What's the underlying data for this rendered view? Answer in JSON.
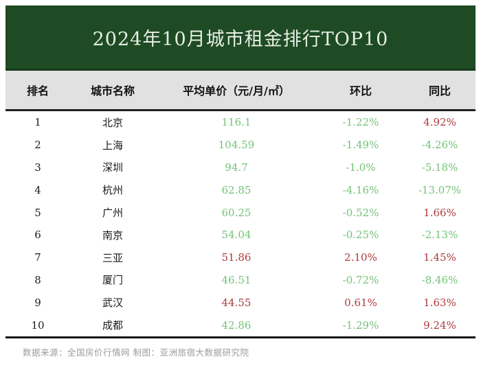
{
  "title": "2024年10月城市租金排行TOP10",
  "table": {
    "columns": [
      "排名",
      "城市名称",
      "平均单价（元/月/㎡）",
      "环比",
      "同比"
    ],
    "rows": [
      {
        "rank": "1",
        "city": "北京",
        "price": "116.1",
        "mom": "-1.22%",
        "yoy": "4.92%"
      },
      {
        "rank": "2",
        "city": "上海",
        "price": "104.59",
        "mom": "-1.49%",
        "yoy": "-4.26%"
      },
      {
        "rank": "3",
        "city": "深圳",
        "price": "94.7",
        "mom": "-1.0%",
        "yoy": "-5.18%"
      },
      {
        "rank": "4",
        "city": "杭州",
        "price": "62.85",
        "mom": "-4.16%",
        "yoy": "-13.07%"
      },
      {
        "rank": "5",
        "city": "广州",
        "price": "60.25",
        "mom": "-0.52%",
        "yoy": "1.66%"
      },
      {
        "rank": "6",
        "city": "南京",
        "price": "54.04",
        "mom": "-0.25%",
        "yoy": "-2.13%"
      },
      {
        "rank": "7",
        "city": "三亚",
        "price": "51.86",
        "mom": "2.10%",
        "yoy": "1.45%"
      },
      {
        "rank": "8",
        "city": "厦门",
        "price": "46.51",
        "mom": "-0.72%",
        "yoy": "-8.46%"
      },
      {
        "rank": "9",
        "city": "武汉",
        "price": "44.55",
        "mom": "0.61%",
        "yoy": "1.63%"
      },
      {
        "rank": "10",
        "city": "成都",
        "price": "42.86",
        "mom": "-1.29%",
        "yoy": "9.24%"
      }
    ]
  },
  "footer": "数据来源：全国房价行情网  制图：亚洲旅宿大数据研究院",
  "colors": {
    "banner": "#1e4b24",
    "banner_edge": "#173a1c",
    "title_color": "#e6efe4",
    "header_bg": "#e1e1e1",
    "up_red": "#ad3a3c",
    "down_green": "#74c277"
  }
}
